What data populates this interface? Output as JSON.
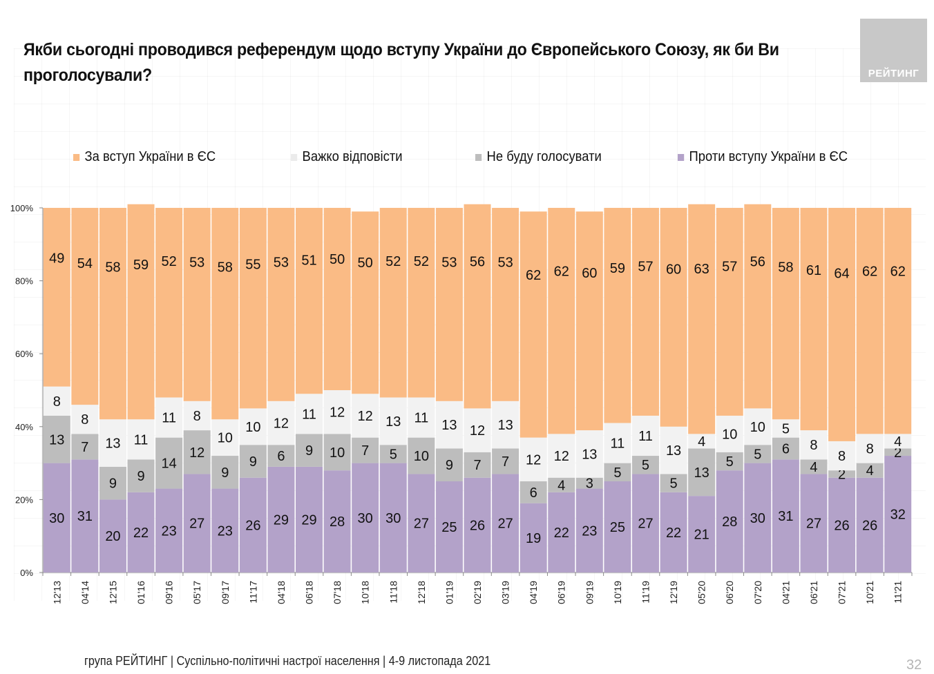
{
  "header": {
    "title": "Якби сьогодні проводився референдум щодо вступу України до Європейського Союзу, як би Ви проголосували?",
    "logo_text": "РЕЙТИНГ"
  },
  "footer": {
    "source": "група РЕЙТИНГ | Суспільно-політичні настрої населення  | 4-9 листопада 2021",
    "page_number": "32"
  },
  "colors": {
    "for": "#fabb85",
    "hard_to_say": "#f2f2f2",
    "wont_vote": "#bdbdbd",
    "against": "#b3a2c9"
  },
  "chart_data": {
    "type": "bar",
    "stacked": true,
    "percent_stacked": true,
    "title": "Якби сьогодні проводився референдум щодо вступу України до Європейського Союзу, як би Ви проголосували?",
    "xlabel": "",
    "ylabel": "",
    "ylim": [
      0,
      100
    ],
    "yticks": [
      "0%",
      "20%",
      "40%",
      "60%",
      "80%",
      "100%"
    ],
    "legend_position": "top",
    "grid": false,
    "categories": [
      "12'13",
      "04'14",
      "12'15",
      "01'16",
      "09'16",
      "05'17",
      "09'17",
      "11'17",
      "04'18",
      "06'18",
      "07'18",
      "10'18",
      "11'18",
      "12'18",
      "01'19",
      "02'19",
      "03'19",
      "04'19",
      "06'19",
      "09'19",
      "10'19",
      "11'19",
      "12'19",
      "05'20",
      "06'20",
      "07'20",
      "04'21",
      "06'21",
      "07'21",
      "10'21",
      "11'21"
    ],
    "series": [
      {
        "name": "Проти вступу України в ЄС",
        "key": "against",
        "values": [
          30,
          31,
          20,
          22,
          23,
          27,
          23,
          26,
          29,
          29,
          28,
          30,
          30,
          27,
          25,
          26,
          27,
          19,
          22,
          23,
          25,
          27,
          22,
          21,
          28,
          30,
          31,
          27,
          26,
          26,
          32
        ]
      },
      {
        "name": "Не буду голосувати",
        "key": "wont_vote",
        "values": [
          13,
          7,
          9,
          9,
          14,
          12,
          9,
          9,
          6,
          9,
          10,
          7,
          5,
          10,
          9,
          7,
          7,
          6,
          4,
          3,
          5,
          5,
          5,
          13,
          5,
          5,
          6,
          4,
          2,
          4,
          2
        ]
      },
      {
        "name": "Важко відповісти",
        "key": "hard_to_say",
        "values": [
          8,
          8,
          13,
          11,
          11,
          8,
          10,
          10,
          12,
          11,
          12,
          12,
          13,
          11,
          13,
          12,
          13,
          12,
          12,
          13,
          11,
          11,
          13,
          4,
          10,
          10,
          5,
          8,
          8,
          8,
          4
        ]
      },
      {
        "name": "За вступ України в ЄС",
        "key": "for",
        "values": [
          49,
          54,
          58,
          59,
          52,
          53,
          58,
          55,
          53,
          51,
          50,
          50,
          52,
          52,
          53,
          56,
          53,
          62,
          62,
          60,
          59,
          57,
          60,
          63,
          57,
          56,
          58,
          61,
          64,
          62,
          62
        ]
      }
    ],
    "legend": [
      {
        "label": "За вступ України в ЄС",
        "key": "for"
      },
      {
        "label": "Важко відповісти",
        "key": "hard_to_say"
      },
      {
        "label": "Не буду голосувати",
        "key": "wont_vote"
      },
      {
        "label": "Проти вступу України в ЄС",
        "key": "against"
      }
    ]
  }
}
